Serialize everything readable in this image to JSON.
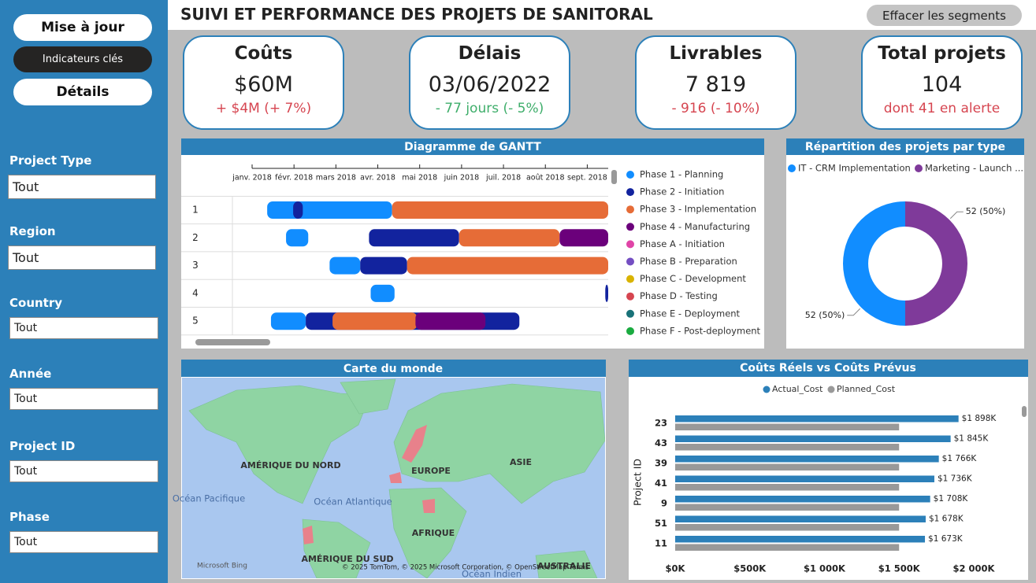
{
  "header": {
    "title": "SUIVI ET PERFORMANCE DES PROJETS DE SANITORAL",
    "button": "Effacer les segments"
  },
  "sidebar": {
    "buttons": [
      "Mise à jour",
      "Indicateurs clés",
      "Détails"
    ],
    "filters": [
      {
        "label": "Project Type",
        "value": "Tout"
      },
      {
        "label": "Region",
        "value": "Tout"
      },
      {
        "label": "Country",
        "value": "Tout"
      },
      {
        "label": "Année",
        "value": "Tout"
      },
      {
        "label": "Project ID",
        "value": "Tout"
      },
      {
        "label": "Phase",
        "value": "Tout"
      }
    ]
  },
  "kpis": [
    {
      "title": "Coûts",
      "value": "$60M",
      "delta": "+ $4M (+ 7%)",
      "color": "#d64550"
    },
    {
      "title": "Délais",
      "value": "03/06/2022",
      "delta": "- 77 jours (- 5%)",
      "color": "#3fae6b"
    },
    {
      "title": "Livrables",
      "value": "7 819",
      "delta": "- 916 (- 10%)",
      "color": "#d64550"
    },
    {
      "title": "Total projets",
      "value": "104",
      "delta": "dont 41 en alerte",
      "color": "#d64550"
    }
  ],
  "map": {
    "title": "Carte du monde",
    "labels": [
      "AMÉRIQUE DU NORD",
      "EUROPE",
      "ASIE",
      "AFRIQUE",
      "AMÉRIQUE DU SUD",
      "AUSTRALIE",
      "Océan Pacifique",
      "Océan Atlantique",
      "Océan Indien"
    ],
    "logo": "Microsoft Bing",
    "attribution": "© 2025 TomTom, © 2025 Microsoft Corporation, © OpenStreetMap Terms"
  },
  "chart_data": [
    {
      "type": "gantt",
      "title": "Diagramme de GANTT",
      "categories": [
        "1",
        "2",
        "3",
        "4",
        "5"
      ],
      "xlim": [
        0,
        8.5
      ],
      "xticks": [
        {
          "value": 0,
          "label": "janv. 2018"
        },
        {
          "value": 1,
          "label": "févr. 2018"
        },
        {
          "value": 2,
          "label": "mars 2018"
        },
        {
          "value": 3,
          "label": "avr. 2018"
        },
        {
          "value": 4,
          "label": "mai 2018"
        },
        {
          "value": 5,
          "label": "juin 2018"
        },
        {
          "value": 6,
          "label": "juil. 2018"
        },
        {
          "value": 7,
          "label": "août 2018"
        },
        {
          "value": 8,
          "label": "sept. 2018"
        }
      ],
      "series": [
        {
          "name": "Phase 1 - Planning",
          "color": "#118dff",
          "start": [
            0.36,
            0.81,
            1.85,
            2.83,
            0.45
          ],
          "end": [
            3.34,
            1.34,
            2.58,
            3.4,
            1.28
          ]
        },
        {
          "name": "Phase 2 - Initiation",
          "color": "#12239e",
          "start": [
            0.98,
            2.79,
            2.58,
            8.43,
            1.28
          ],
          "end": [
            1.21,
            4.94,
            3.7,
            8.5,
            6.38
          ]
        },
        {
          "name": "Phase 3 - Implementation",
          "color": "#e66c37",
          "start": [
            3.34,
            4.94,
            3.7,
            null,
            1.92
          ],
          "end": [
            8.5,
            7.34,
            8.5,
            null,
            3.94
          ]
        },
        {
          "name": "Phase 4 - Manufacturing",
          "color": "#6b007b",
          "start": [
            null,
            7.34,
            null,
            null,
            3.9
          ],
          "end": [
            null,
            8.5,
            null,
            null,
            5.57
          ]
        },
        {
          "name": "Phase A - Initiation",
          "color": "#e044a7",
          "start": [
            null,
            null,
            null,
            null,
            null
          ],
          "end": [
            null,
            null,
            null,
            null,
            null
          ]
        },
        {
          "name": "Phase B - Preparation",
          "color": "#744ec2",
          "start": [
            null,
            null,
            null,
            null,
            null
          ],
          "end": [
            null,
            null,
            null,
            null,
            null
          ]
        },
        {
          "name": "Phase C - Development",
          "color": "#d9b300",
          "start": [
            null,
            null,
            null,
            null,
            null
          ],
          "end": [
            null,
            null,
            null,
            null,
            null
          ]
        },
        {
          "name": "Phase D - Testing",
          "color": "#d64550",
          "start": [
            null,
            null,
            null,
            null,
            null
          ],
          "end": [
            null,
            null,
            null,
            null,
            null
          ]
        },
        {
          "name": "Phase E - Deployment",
          "color": "#197278",
          "start": [
            null,
            null,
            null,
            null,
            null
          ],
          "end": [
            null,
            null,
            null,
            null,
            null
          ]
        },
        {
          "name": "Phase F - Post-deployment",
          "color": "#1aab40",
          "start": [
            null,
            null,
            null,
            null,
            null
          ],
          "end": [
            null,
            null,
            null,
            null,
            null
          ]
        }
      ]
    },
    {
      "type": "pie",
      "title": "Répartition des projets par type",
      "donut": true,
      "categories": [
        "IT - CRM Implementation",
        "Marketing - Launch ..."
      ],
      "values": [
        52,
        52
      ],
      "value_labels": [
        "52 (50%)",
        "52 (50%)"
      ],
      "colors": [
        "#118dff",
        "#7f3a9a"
      ]
    },
    {
      "type": "hbar",
      "title": "Coûts Réels vs Coûts Prévus",
      "y_label": "Project ID",
      "categories": [
        "23",
        "43",
        "39",
        "41",
        "9",
        "51",
        "11"
      ],
      "xlim": [
        0,
        2000000
      ],
      "xticks": [
        {
          "value": 0,
          "label": "$0K"
        },
        {
          "value": 500000,
          "label": "$500K"
        },
        {
          "value": 1000000,
          "label": "$1 000K"
        },
        {
          "value": 1500000,
          "label": "$1 500K"
        },
        {
          "value": 2000000,
          "label": "$2 000K"
        }
      ],
      "series": [
        {
          "name": "Actual_Cost",
          "color": "#2c80b9",
          "values": [
            1898000,
            1845000,
            1766000,
            1736000,
            1708000,
            1678000,
            1673000
          ],
          "value_labels": [
            "$1 898K",
            "$1 845K",
            "$1 766K",
            "$1 736K",
            "$1 708K",
            "$1 678K",
            "$1 673K"
          ]
        },
        {
          "name": "Planned_Cost",
          "color": "#999999",
          "values": [
            1500000,
            1500000,
            1500000,
            1500000,
            1500000,
            1500000,
            1500000
          ]
        }
      ]
    }
  ]
}
